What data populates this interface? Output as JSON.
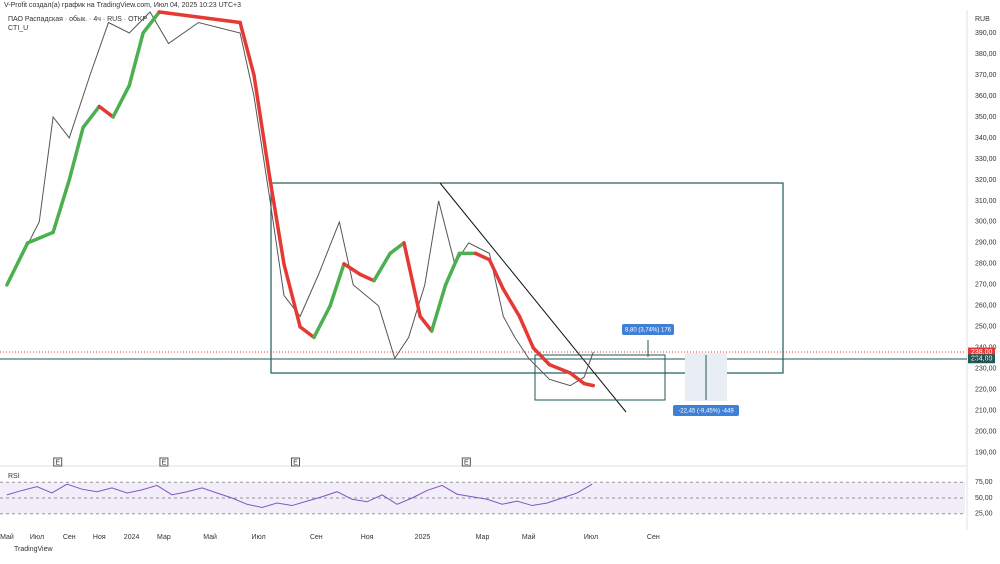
{
  "header": "V-Profit создал(а) график на TradingView.com, Июл 04, 2025 10:23 UTC+3",
  "footer": "TradingView",
  "chart_data": [
    {
      "type": "line",
      "title": "ПАО Распадская · обык. · 4ч · RUS · OTKP",
      "indicator": "CTI_U",
      "currency": "RUB",
      "countdown": "36:30",
      "xlim": [
        -0.3,
        41.5
      ],
      "ylim": [
        188,
        400
      ],
      "xticks": [
        {
          "value": 0,
          "label": "Май"
        },
        {
          "value": 1.3,
          "label": "Июл"
        },
        {
          "value": 2.7,
          "label": "Сен"
        },
        {
          "value": 4.0,
          "label": "Ноя"
        },
        {
          "value": 5.4,
          "label": "2024"
        },
        {
          "value": 6.8,
          "label": "Мар"
        },
        {
          "value": 8.8,
          "label": "Май"
        },
        {
          "value": 10.9,
          "label": "Июл"
        },
        {
          "value": 13.4,
          "label": "Сен"
        },
        {
          "value": 15.6,
          "label": "Ноя"
        },
        {
          "value": 18.0,
          "label": "2025"
        },
        {
          "value": 20.6,
          "label": "Мар"
        },
        {
          "value": 22.6,
          "label": "Май"
        },
        {
          "value": 25.3,
          "label": "Июл"
        },
        {
          "value": 28.0,
          "label": "Сен"
        }
      ],
      "yticks": [
        {
          "value": 190,
          "label": "190,00"
        },
        {
          "value": 200,
          "label": "200,00"
        },
        {
          "value": 210,
          "label": "210,00"
        },
        {
          "value": 220,
          "label": "220,00"
        },
        {
          "value": 230,
          "label": "230,00"
        },
        {
          "value": 240,
          "label": "240,00"
        },
        {
          "value": 250,
          "label": "250,00"
        },
        {
          "value": 260,
          "label": "260,00"
        },
        {
          "value": 270,
          "label": "270,00"
        },
        {
          "value": 280,
          "label": "280,00"
        },
        {
          "value": 290,
          "label": "290,00"
        },
        {
          "value": 300,
          "label": "300,00"
        },
        {
          "value": 310,
          "label": "310,00"
        },
        {
          "value": 320,
          "label": "320,00"
        },
        {
          "value": 330,
          "label": "330,00"
        },
        {
          "value": 340,
          "label": "340,00"
        },
        {
          "value": 350,
          "label": "350,00"
        },
        {
          "value": 360,
          "label": "360,00"
        },
        {
          "value": 370,
          "label": "370,00"
        },
        {
          "value": 380,
          "label": "380,00"
        },
        {
          "value": 390,
          "label": "390,00"
        }
      ],
      "price_labels": [
        {
          "value": 238,
          "label": "238,00"
        },
        {
          "value": 234.8,
          "label": "234,80"
        }
      ],
      "events": {
        "x": [
          2.2,
          6.8,
          12.5,
          19.9
        ],
        "labels": [
          "E",
          "E",
          "E",
          "E"
        ]
      },
      "annotations": [
        "8,80 (3,74%) 176",
        "-22,45 (-9,45%) -449"
      ],
      "series": [
        {
          "name": "price",
          "color": "#555555",
          "x": [
            0,
            1.4,
            2.0,
            2.7,
            3.6,
            4.4,
            5.3,
            6.2,
            7.0,
            8.3,
            10.1,
            10.7,
            11.4,
            12.0,
            12.7,
            13.5,
            14.4,
            15.0,
            16.1,
            16.8,
            17.4,
            18.1,
            18.7,
            19.4,
            20.0,
            20.9,
            21.5,
            22.0,
            22.6,
            23.5,
            24.4,
            25.0,
            25.4
          ],
          "values": [
            270,
            300,
            350,
            340,
            370,
            395,
            390,
            400,
            385,
            395,
            390,
            360,
            310,
            265,
            255,
            275,
            300,
            270,
            260,
            235,
            245,
            270,
            310,
            280,
            290,
            285,
            255,
            245,
            235,
            225,
            222,
            226,
            238
          ]
        },
        {
          "name": "CTI_U",
          "rise_color": "#4caf50",
          "fall_color": "#e53935",
          "x": [
            0,
            0.9,
            2.0,
            2.7,
            3.3,
            4.0,
            4.6,
            5.3,
            5.9,
            6.6,
            10.1,
            10.7,
            11.4,
            12.0,
            12.7,
            13.3,
            14.0,
            14.6,
            15.3,
            15.9,
            16.6,
            17.2,
            17.9,
            18.4,
            19.0,
            19.6,
            20.3,
            20.9,
            21.5,
            22.2,
            22.8,
            23.5,
            24.4,
            25.0,
            25.4
          ],
          "values": [
            270,
            290,
            295,
            320,
            345,
            355,
            350,
            365,
            390,
            400,
            395,
            370,
            320,
            280,
            250,
            245,
            260,
            280,
            275,
            272,
            285,
            290,
            255,
            248,
            270,
            285,
            285,
            282,
            268,
            255,
            240,
            232,
            228,
            223,
            222
          ]
        }
      ]
    },
    {
      "type": "line",
      "title": "RSI",
      "xlim": [
        -0.3,
        41.5
      ],
      "ylim": [
        15,
        85
      ],
      "yticks": [
        {
          "value": 75,
          "label": "75,00"
        },
        {
          "value": 50,
          "label": "50,00"
        },
        {
          "value": 25,
          "label": "25,00"
        }
      ],
      "series": [
        {
          "name": "RSI",
          "color": "#7e57c2",
          "x": [
            0,
            0.65,
            1.3,
            1.95,
            2.6,
            3.25,
            3.9,
            4.55,
            5.2,
            5.85,
            6.5,
            7.15,
            7.8,
            8.45,
            9.1,
            9.75,
            10.4,
            11.05,
            11.7,
            12.35,
            13,
            13.65,
            14.3,
            14.95,
            15.6,
            16.25,
            16.9,
            17.55,
            18.2,
            18.85,
            19.5,
            20.15,
            20.8,
            21.45,
            22.1,
            22.75,
            23.4,
            24.05,
            24.7,
            25.35
          ],
          "values": [
            55,
            62,
            68,
            58,
            72,
            64,
            60,
            66,
            58,
            63,
            70,
            55,
            60,
            66,
            58,
            50,
            40,
            35,
            42,
            38,
            45,
            52,
            60,
            48,
            44,
            55,
            40,
            50,
            62,
            70,
            56,
            52,
            48,
            40,
            45,
            38,
            42,
            50,
            58,
            72
          ]
        }
      ]
    }
  ]
}
